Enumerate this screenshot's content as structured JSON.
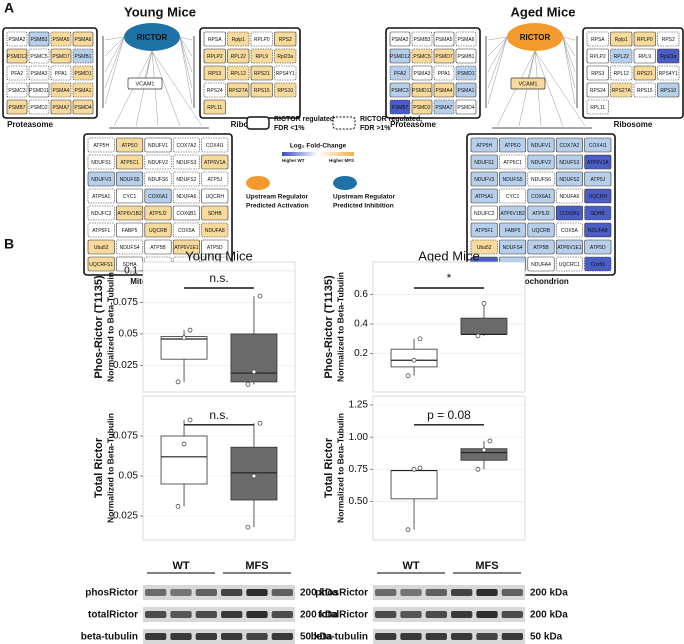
{
  "panel_a": {
    "label": "A",
    "complexes": {
      "proteasome": {
        "label": "Proteasome",
        "genes": [
          "PSMA2",
          "PSMB3",
          "PSMA5",
          "PSMA6",
          "PSMD12",
          "PSMC5",
          "PSMD7",
          "PSMB1",
          "PFA2",
          "PSMA3",
          "PPA1",
          "PSMD1",
          "PSMC3",
          "PSMD11",
          "PSMA4",
          "PSMA1",
          "PSMB7",
          "PSMD2",
          "PSMA7",
          "PSMD4"
        ]
      },
      "ribosome": {
        "label": "Ribosome",
        "genes": [
          "RPSA",
          "Rplp1",
          "RPLP0",
          "RPS2",
          "RPLP2",
          "RPL22",
          "RPL9",
          "Rpl23a",
          "RPS3",
          "RPL12",
          "RPS21",
          "RPS4Y1",
          "RPS24",
          "RPS27A",
          "RPS15",
          "RPS10",
          "RPL11"
        ]
      },
      "mitochondrion": {
        "label": "Mitochondrion",
        "genes": [
          "ATP5H",
          "ATP5O",
          "NDUFV1",
          "COX7A2",
          "COX4I1",
          "NDUFS1",
          "ATP5C1",
          "NDUFV2",
          "NDUFS3",
          "ATP6V1A",
          "NDUFV3",
          "NDUFS5",
          "NDUFS6",
          "NDUFS2",
          "ATP5J",
          "ATP5A1",
          "CYC1",
          "COX6A1",
          "NDUFA6",
          "UQCRH",
          "NDUFC2",
          "ATP6V1B2",
          "ATP5J2",
          "COX6B1",
          "SDHB",
          "ATP5F1",
          "FABP5",
          "UQCRB",
          "COX5A",
          "NDUFA8",
          "Uba52",
          "NDUFS4",
          "ATP5B",
          "ATP6V1E1",
          "ATP5D",
          "UQCRFS1",
          "SDHA",
          "NDUFA4",
          "UQCRC1",
          "Cox5b"
        ]
      }
    },
    "palette": {
      "w": "#ffffff",
      "y": "#f7da9c",
      "b": "#b7cfea",
      "d": "#4b5cc4"
    },
    "networks": [
      {
        "title": "Young Mice",
        "regulator": "RICTOR",
        "regulator_color": "#1f72a6",
        "target": "VCAM1",
        "target_fill": "w",
        "fills": {
          "proteasome": "wbyyywybwwwywwyyywyy",
          "ribosome": "wywyyyyyyyywwyyyy",
          "mitochondrion": "wywwwwywwybbwwwwwbwwwyywywwywyywwywywwww"
        },
        "borders": {
          "proteasome": "dsdssdsddddddsddsdss",
          "ribosome": "sddsssddsdsddssds",
          "mitochondrion": "dssdddsddsssddddssdsdssssdssddsdsssssddd"
        }
      },
      {
        "title": "Aged Mice",
        "regulator": "RICTOR",
        "regulator_color": "#f39a2c",
        "target": "VCAM1",
        "target_fill": "y",
        "fills": {
          "proteasome": "wwwwbyywbwwbbyybdybw",
          "ribosome": "wyywwbwdwwywwywbw",
          "mitochondrion": "bbbbbbwbbdbbwbbbwbwdwbbddbbbwdybbbbdbwwd"
        },
        "borders": {
          "proteasome": "sdsdsdssdsddssssdsds",
          "ribosome": "dssdsdsssdsdsddsd",
          "mitochondrion": "ssssssdsssssdsssdsdsssssdsssdsdsssssssdd"
        }
      }
    ],
    "legend": {
      "solid": [
        "RICTOR regulated,",
        "FDR <1%"
      ],
      "dashed": [
        "RICTOR regulated,",
        "FDR >1%"
      ],
      "scale_title": "Log₂ Fold-Change",
      "scale_low": "Higher WT",
      "scale_high": "Higher MFS",
      "scale_colors": [
        "#3b4cc0",
        "#ffffff",
        "#f4b04b"
      ],
      "activation": [
        "Upstream Regulator",
        "Predicted Activation"
      ],
      "activation_color": "#f39a2c",
      "inhibition": [
        "Upstream Regulator",
        "Predicted Inhibition"
      ],
      "inhibition_color": "#1f72a6"
    }
  },
  "panel_b": {
    "label": "B",
    "columns": [
      {
        "title": "Young Mice",
        "charts": [
          {
            "type": "box",
            "y_label": [
              "Phos-Rictor (T1135)",
              "Normalized to Beta-Tubulin"
            ],
            "colors": [
              "#ffffff",
              "#6b6b6b"
            ],
            "grid": true,
            "ylim": [
              0.004,
              0.107
            ],
            "yticks": [
              0.025,
              0.05,
              0.075,
              0.1
            ],
            "annotation": "n.s.",
            "boxes": [
              {
                "whisker_low": 0.012,
                "q1": 0.03,
                "median": 0.046,
                "q3": 0.048,
                "whisker_high": 0.053,
                "points": [
                  0.012,
                  0.047,
                  0.053
                ]
              },
              {
                "whisker_low": 0.01,
                "q1": 0.012,
                "median": 0.019,
                "q3": 0.05,
                "whisker_high": 0.08,
                "points": [
                  0.01,
                  0.02,
                  0.08
                ]
              }
            ]
          },
          {
            "type": "box",
            "y_label": [
              "Total Rictor",
              "Normalized to Beta-Tubulin"
            ],
            "colors": [
              "#ffffff",
              "#6b6b6b"
            ],
            "grid": true,
            "ylim": [
              0.01,
              0.1
            ],
            "yticks": [
              0.025,
              0.05,
              0.075
            ],
            "annotation": "n.s.",
            "boxes": [
              {
                "whisker_low": 0.031,
                "q1": 0.045,
                "median": 0.062,
                "q3": 0.075,
                "whisker_high": 0.085,
                "points": [
                  0.031,
                  0.07,
                  0.085
                ]
              },
              {
                "whisker_low": 0.018,
                "q1": 0.035,
                "median": 0.052,
                "q3": 0.068,
                "whisker_high": 0.083,
                "points": [
                  0.018,
                  0.05,
                  0.083
                ]
              }
            ]
          }
        ],
        "blot": {
          "groups": [
            "WT",
            "MFS"
          ],
          "rows": [
            {
              "label": "phosRictor",
              "size": "200 kDa"
            },
            {
              "label": "totalRictor",
              "size": "200 kDa"
            },
            {
              "label": "beta-tubulin",
              "size": "50 kDa"
            }
          ]
        }
      },
      {
        "title": "Aged Mice",
        "charts": [
          {
            "type": "box",
            "y_label": [
              "Phos-Rictor (T1135)",
              "Normalized to Beta-Tubulin"
            ],
            "colors": [
              "#ffffff",
              "#6b6b6b"
            ],
            "grid": true,
            "ylim": [
              -0.06,
              0.82
            ],
            "yticks": [
              0.2,
              0.4,
              0.6
            ],
            "annotation": "*",
            "boxes": [
              {
                "whisker_low": 0.05,
                "q1": 0.11,
                "median": 0.155,
                "q3": 0.23,
                "whisker_high": 0.3,
                "points": [
                  0.05,
                  0.155,
                  0.3
                ]
              },
              {
                "whisker_low": 0.32,
                "q1": 0.33,
                "median": 0.33,
                "q3": 0.44,
                "whisker_high": 0.54,
                "points": [
                  0.32,
                  0.54
                ]
              }
            ]
          },
          {
            "type": "box",
            "y_label": [
              "Total Rictor",
              "Normalized to Beta-Tubulin"
            ],
            "colors": [
              "#ffffff",
              "#6b6b6b"
            ],
            "grid": true,
            "ylim": [
              0.2,
              1.32
            ],
            "yticks": [
              {
                "value": 0.5,
                "label": "0.50"
              },
              {
                "value": 0.75,
                "label": "0.75"
              },
              {
                "value": 1.0,
                "label": "1.00"
              },
              {
                "value": 1.25,
                "label": "1.25"
              }
            ],
            "annotation": "p = 0.08",
            "boxes": [
              {
                "whisker_low": 0.28,
                "q1": 0.52,
                "median": 0.74,
                "q3": 0.74,
                "whisker_high": 0.76,
                "points": [
                  0.28,
                  0.75,
                  0.76
                ]
              },
              {
                "whisker_low": 0.75,
                "q1": 0.82,
                "median": 0.88,
                "q3": 0.91,
                "whisker_high": 0.97,
                "points": [
                  0.75,
                  0.9,
                  0.97
                ]
              }
            ]
          }
        ],
        "blot": {
          "groups": [
            "WT",
            "MFS"
          ],
          "rows": [
            {
              "label": "phosRictor",
              "size": "200 kDa"
            },
            {
              "label": "totalRictor",
              "size": "200 kDa"
            },
            {
              "label": "beta-tubulin",
              "size": "50 kDa"
            }
          ]
        }
      }
    ]
  }
}
